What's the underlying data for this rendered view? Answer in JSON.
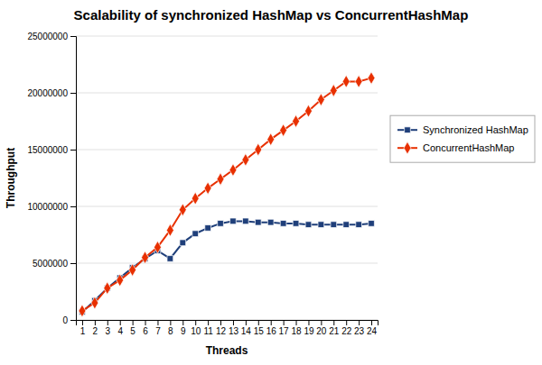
{
  "chart_data": {
    "type": "line",
    "title": "Scalability of synchronized HashMap vs ConcurrentHashMap",
    "xlabel": "Threads",
    "ylabel": "Throughput",
    "x": [
      1,
      2,
      3,
      4,
      5,
      6,
      7,
      8,
      9,
      10,
      11,
      12,
      13,
      14,
      15,
      16,
      17,
      18,
      19,
      20,
      21,
      22,
      23,
      24
    ],
    "xlim": [
      0.5,
      24.5
    ],
    "xticks": [
      1,
      2,
      3,
      4,
      5,
      6,
      7,
      8,
      9,
      10,
      11,
      12,
      13,
      14,
      15,
      16,
      17,
      18,
      19,
      20,
      21,
      22,
      23,
      24
    ],
    "ylim": [
      0,
      25000000
    ],
    "yticks": [
      0,
      5000000,
      10000000,
      15000000,
      20000000,
      25000000
    ],
    "grid": true,
    "legend": "right",
    "series": [
      {
        "name": "Synchronized HashMap",
        "color": "#1F3F7A",
        "marker": "square",
        "values": [
          700000,
          1700000,
          2800000,
          3700000,
          4600000,
          5400000,
          6100000,
          5400000,
          6800000,
          7600000,
          8100000,
          8500000,
          8700000,
          8700000,
          8600000,
          8600000,
          8500000,
          8500000,
          8400000,
          8400000,
          8400000,
          8400000,
          8400000,
          8500000
        ]
      },
      {
        "name": "ConcurrentHashMap",
        "color": "#E83000",
        "marker": "diamond",
        "values": [
          800000,
          1500000,
          2800000,
          3500000,
          4400000,
          5500000,
          6400000,
          7900000,
          9700000,
          10700000,
          11600000,
          12400000,
          13200000,
          14100000,
          15000000,
          15900000,
          16700000,
          17500000,
          18400000,
          19400000,
          20200000,
          21000000,
          21000000,
          21300000
        ]
      }
    ]
  }
}
